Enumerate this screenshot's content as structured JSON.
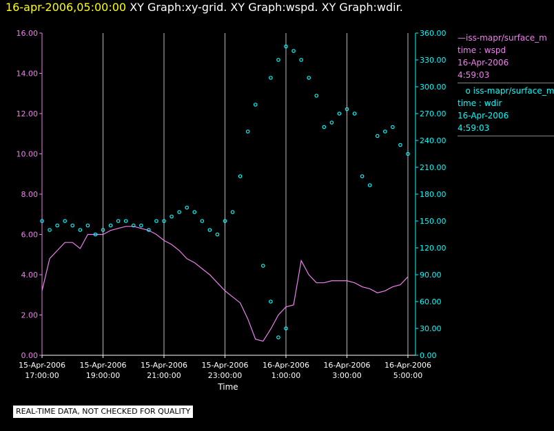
{
  "header": {
    "timestamp": "16-apr-2006,05:00:00",
    "graphs": "XY Graph:xy-grid.  XY Graph:wspd.  XY Graph:wdir."
  },
  "notice": "REAL-TIME DATA, NOT CHECKED FOR QUALITY",
  "colors": {
    "wspd": "#ee82ee",
    "wdir": "#00ffff",
    "grid": "#bbbbbb",
    "background": "#000000"
  },
  "legend": [
    {
      "line1": "iss-mapr/surface_m",
      "line2": "time : wspd",
      "line3": "16-Apr-2006",
      "line4": "4:59:03"
    },
    {
      "line1": "iss-mapr/surface_m",
      "line2": "time : wdir",
      "line3": "16-Apr-2006",
      "line4": "4:59:03"
    }
  ],
  "chart_data": {
    "type": "line",
    "xlabel": "Time",
    "x_ticks": [
      [
        "15-Apr-2006",
        "17:00:00"
      ],
      [
        "15-Apr-2006",
        "19:00:00"
      ],
      [
        "15-Apr-2006",
        "21:00:00"
      ],
      [
        "15-Apr-2006",
        "23:00:00"
      ],
      [
        "16-Apr-2006",
        "1:00:00"
      ],
      [
        "16-Apr-2006",
        "3:00:00"
      ],
      [
        "16-Apr-2006",
        "5:00:00"
      ]
    ],
    "x_tick_hours": [
      17,
      19,
      21,
      23,
      25,
      27,
      29
    ],
    "x_gridlines_hours": [
      17,
      19,
      21,
      23,
      25,
      27,
      29
    ],
    "xlim_hours": [
      17,
      29
    ],
    "y_left": {
      "ticks": [
        "0.00",
        "2.00",
        "4.00",
        "6.00",
        "8.00",
        "10.00",
        "12.00",
        "14.00",
        "16.00"
      ],
      "lim": [
        0,
        16
      ]
    },
    "y_right": {
      "ticks": [
        "0.00",
        "30.00",
        "60.00",
        "90.00",
        "120.00",
        "150.00",
        "180.00",
        "210.00",
        "240.00",
        "270.00",
        "300.00",
        "330.00",
        "360.00"
      ],
      "lim": [
        0,
        360
      ]
    },
    "grid": "vertical",
    "series": [
      {
        "name": "wspd",
        "style": "line",
        "axis": "left",
        "points": [
          [
            17.0,
            3.2
          ],
          [
            17.25,
            4.8
          ],
          [
            17.5,
            5.2
          ],
          [
            17.75,
            5.6
          ],
          [
            18.0,
            5.6
          ],
          [
            18.25,
            5.3
          ],
          [
            18.5,
            6.0
          ],
          [
            18.75,
            6.0
          ],
          [
            19.0,
            6.0
          ],
          [
            19.25,
            6.2
          ],
          [
            19.5,
            6.3
          ],
          [
            19.75,
            6.4
          ],
          [
            20.0,
            6.4
          ],
          [
            20.25,
            6.3
          ],
          [
            20.5,
            6.2
          ],
          [
            20.75,
            6.0
          ],
          [
            21.0,
            5.7
          ],
          [
            21.25,
            5.5
          ],
          [
            21.5,
            5.2
          ],
          [
            21.75,
            4.8
          ],
          [
            22.0,
            4.6
          ],
          [
            22.25,
            4.3
          ],
          [
            22.5,
            4.0
          ],
          [
            22.75,
            3.6
          ],
          [
            23.0,
            3.2
          ],
          [
            23.25,
            2.9
          ],
          [
            23.5,
            2.6
          ],
          [
            23.75,
            1.8
          ],
          [
            24.0,
            0.8
          ],
          [
            24.25,
            0.7
          ],
          [
            24.5,
            1.3
          ],
          [
            24.75,
            2.0
          ],
          [
            25.0,
            2.4
          ],
          [
            25.25,
            2.5
          ],
          [
            25.5,
            4.7
          ],
          [
            25.75,
            4.0
          ],
          [
            26.0,
            3.6
          ],
          [
            26.25,
            3.6
          ],
          [
            26.5,
            3.7
          ],
          [
            26.75,
            3.7
          ],
          [
            27.0,
            3.7
          ],
          [
            27.25,
            3.6
          ],
          [
            27.5,
            3.4
          ],
          [
            27.75,
            3.3
          ],
          [
            28.0,
            3.1
          ],
          [
            28.25,
            3.2
          ],
          [
            28.5,
            3.4
          ],
          [
            28.75,
            3.5
          ],
          [
            29.0,
            3.9
          ]
        ]
      },
      {
        "name": "wdir",
        "style": "scatter",
        "axis": "right",
        "points": [
          [
            17.0,
            150
          ],
          [
            17.25,
            140
          ],
          [
            17.5,
            145
          ],
          [
            17.75,
            150
          ],
          [
            18.0,
            145
          ],
          [
            18.25,
            140
          ],
          [
            18.5,
            145
          ],
          [
            18.75,
            135
          ],
          [
            19.0,
            140
          ],
          [
            19.25,
            145
          ],
          [
            19.5,
            150
          ],
          [
            19.75,
            150
          ],
          [
            20.0,
            145
          ],
          [
            20.25,
            145
          ],
          [
            20.5,
            140
          ],
          [
            20.75,
            150
          ],
          [
            21.0,
            150
          ],
          [
            21.25,
            155
          ],
          [
            21.5,
            160
          ],
          [
            21.75,
            165
          ],
          [
            22.0,
            160
          ],
          [
            22.25,
            150
          ],
          [
            22.5,
            140
          ],
          [
            22.75,
            135
          ],
          [
            23.0,
            150
          ],
          [
            23.25,
            160
          ],
          [
            23.5,
            200
          ],
          [
            23.75,
            250
          ],
          [
            24.0,
            280
          ],
          [
            24.25,
            100
          ],
          [
            24.5,
            60
          ],
          [
            24.75,
            20
          ],
          [
            25.0,
            30
          ],
          [
            24.5,
            310
          ],
          [
            24.75,
            330
          ],
          [
            25.0,
            345
          ],
          [
            25.25,
            340
          ],
          [
            25.5,
            330
          ],
          [
            25.75,
            310
          ],
          [
            26.0,
            290
          ],
          [
            26.25,
            255
          ],
          [
            26.5,
            260
          ],
          [
            26.75,
            270
          ],
          [
            27.0,
            275
          ],
          [
            27.25,
            270
          ],
          [
            27.5,
            200
          ],
          [
            27.75,
            190
          ],
          [
            28.0,
            245
          ],
          [
            28.25,
            250
          ],
          [
            28.5,
            255
          ],
          [
            28.75,
            235
          ],
          [
            29.0,
            225
          ]
        ]
      }
    ]
  }
}
